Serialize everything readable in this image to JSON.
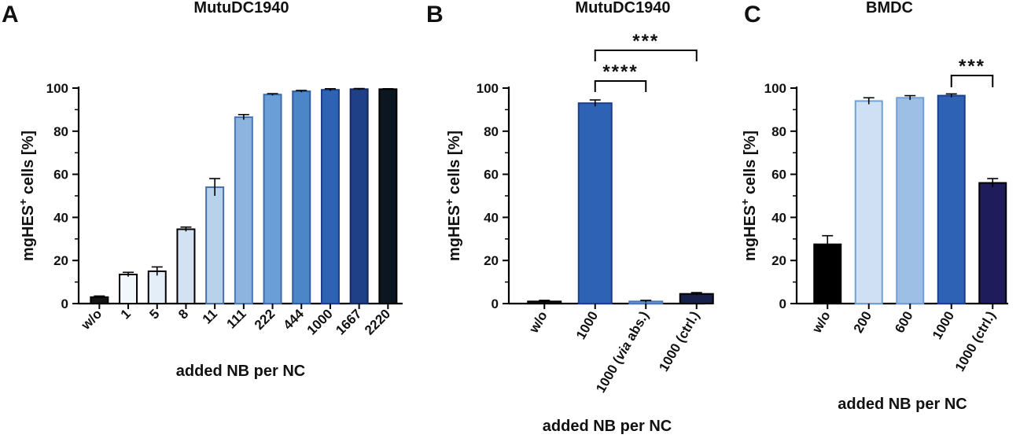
{
  "chart_data": [
    {
      "type": "bar",
      "panel": "A",
      "title": "MutuDC1940",
      "xlabel": "added NB per NC",
      "ylabel_main": "mgHES",
      "ylabel_sup": "+",
      "ylabel_rest": " cells [%]",
      "ylim": [
        0,
        100
      ],
      "yticks": [
        "0",
        "20",
        "40",
        "60",
        "80",
        "100"
      ],
      "categories": [
        "w/o",
        "1",
        "5",
        "8",
        "11",
        "111",
        "222",
        "444",
        "1000",
        "1667",
        "2220"
      ],
      "values": [
        3,
        13.5,
        15,
        34.5,
        54,
        86.5,
        97,
        98.5,
        99.2,
        99.5,
        99.5
      ],
      "errors": [
        0.5,
        1,
        2,
        1,
        4,
        1.2,
        0.4,
        0.4,
        0.5,
        0.3,
        0.2
      ],
      "fills": [
        "#141414",
        "#f2f7fc",
        "#e4eef8",
        "#d2e2f3",
        "#b9d2ec",
        "#8db4de",
        "#6a9ed6",
        "#4c86c9",
        "#2d62b4",
        "#1f3f86",
        "#0c1620"
      ],
      "strokes": [
        "#000000",
        "#000000",
        "#000000",
        "#000000",
        "#4a6fa5",
        "#4a78b8",
        "#3d6fb0",
        "#2c5ca3",
        "#1c3f8a",
        "#14295e",
        "#000000"
      ]
    },
    {
      "type": "bar",
      "panel": "B",
      "title": "MutuDC1940",
      "xlabel": "added NB per NC",
      "ylabel_main": "mgHES",
      "ylabel_sup": "+",
      "ylabel_rest": " cells [%]",
      "ylim": [
        0,
        100
      ],
      "yticks": [
        "0",
        "20",
        "40",
        "60",
        "80",
        "100"
      ],
      "categories": [
        "w/o",
        "1000",
        "1000 (via abs.)",
        "1000 (ctrl.)"
      ],
      "values": [
        1,
        93,
        1,
        4.5
      ],
      "errors": [
        0.5,
        1.5,
        0.5,
        0.6
      ],
      "fills": [
        "#141414",
        "#2d62b4",
        "#6fa0d8",
        "#16204a"
      ],
      "strokes": [
        "#000000",
        "#1c3f8a",
        "#4a78b8",
        "#000000"
      ],
      "significance": [
        {
          "from": 1,
          "to": 2,
          "label": "****"
        },
        {
          "from": 1,
          "to": 3,
          "label": "***"
        }
      ]
    },
    {
      "type": "bar",
      "panel": "C",
      "title": "BMDC",
      "xlabel": "added NB per NC",
      "ylabel_main": "mgHES",
      "ylabel_sup": "+",
      "ylabel_rest": " cells [%]",
      "ylim": [
        0,
        100
      ],
      "yticks": [
        "0",
        "20",
        "40",
        "60",
        "80",
        "100"
      ],
      "categories": [
        "w/o",
        "200",
        "600",
        "1000",
        "1000 (ctrl.)"
      ],
      "values": [
        27.5,
        94,
        95.5,
        96.5,
        56
      ],
      "errors": [
        4,
        1.5,
        1,
        0.8,
        2
      ],
      "fills": [
        "#000000",
        "#cfe0f4",
        "#9dbfe6",
        "#2d62b4",
        "#1e1c5a"
      ],
      "strokes": [
        "#000000",
        "#6f9fd8",
        "#6f9fd8",
        "#1c3f8a",
        "#000000"
      ],
      "significance": [
        {
          "from": 3,
          "to": 4,
          "label": "***"
        }
      ]
    }
  ]
}
